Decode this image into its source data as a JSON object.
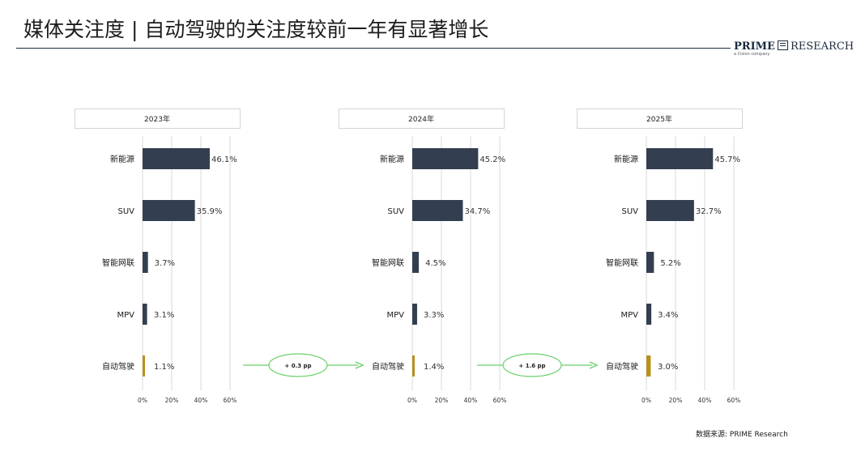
{
  "title": "媒体关注度 | 自动驾驶的关注度较前一年有显著增长",
  "logo": {
    "brand_bold": "PRIME",
    "brand_rest": "RESEARCH",
    "tagline": "a Cision company"
  },
  "source": "数据来源: PRIME Research",
  "colors": {
    "bar": "#333f50",
    "highlight": "#b8901e",
    "arrow": "#6ad06a",
    "title_rule": "#1b2a3d"
  },
  "chart_data": [
    {
      "type": "bar",
      "orientation": "horizontal",
      "title": "2023年",
      "categories": [
        "新能源",
        "SUV",
        "智能网联",
        "MPV",
        "自动驾驶"
      ],
      "values": [
        46.1,
        35.9,
        3.7,
        3.1,
        1.1
      ],
      "value_labels": [
        "46.1%",
        "35.9%",
        "3.7%",
        "3.1%",
        "1.1%"
      ],
      "xticks": [
        "0%",
        "20%",
        "40%",
        "60%"
      ],
      "xlim": [
        0,
        60
      ],
      "grid": true
    },
    {
      "type": "bar",
      "orientation": "horizontal",
      "title": "2024年",
      "categories": [
        "新能源",
        "SUV",
        "智能网联",
        "MPV",
        "自动驾驶"
      ],
      "values": [
        45.2,
        34.7,
        4.5,
        3.3,
        1.4
      ],
      "value_labels": [
        "45.2%",
        "34.7%",
        "4.5%",
        "3.3%",
        "1.4%"
      ],
      "xticks": [
        "0%",
        "20%",
        "40%",
        "60%"
      ],
      "xlim": [
        0,
        60
      ],
      "grid": true
    },
    {
      "type": "bar",
      "orientation": "horizontal",
      "title": "2025年",
      "categories": [
        "新能源",
        "SUV",
        "智能网联",
        "MPV",
        "自动驾驶"
      ],
      "values": [
        45.7,
        32.7,
        5.2,
        3.4,
        3.0
      ],
      "value_labels": [
        "45.7%",
        "32.7%",
        "5.2%",
        "3.4%",
        "3.0%"
      ],
      "xticks": [
        "0%",
        "20%",
        "40%",
        "60%"
      ],
      "xlim": [
        0,
        60
      ],
      "grid": true
    }
  ],
  "annotations": [
    "+ 0.3 pp",
    "+ 1.6 pp"
  ]
}
